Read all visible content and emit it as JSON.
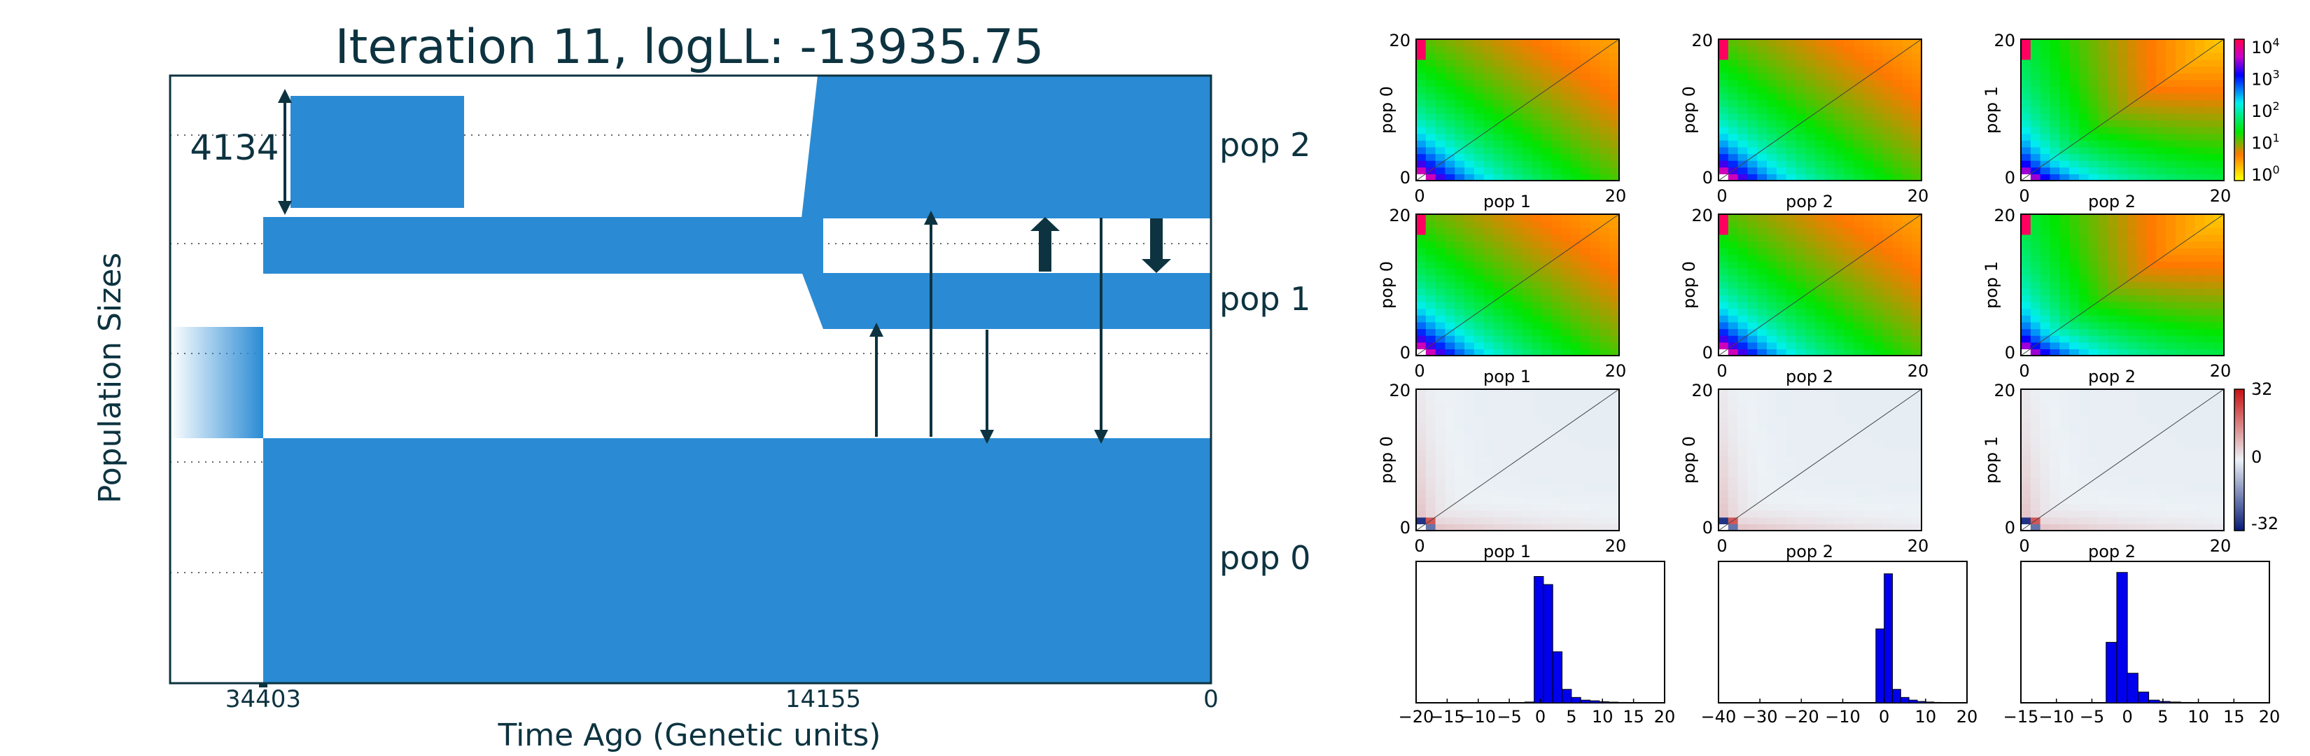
{
  "demography": {
    "title": "Iteration 11, logLL:  -13935.75",
    "xlabel": "Time Ago (Genetic units)",
    "ylabel": "Population Sizes",
    "x_ticks": [
      "34403",
      "14155",
      "0"
    ],
    "size_scale_label": "4134",
    "populations": [
      "pop 0",
      "pop 1",
      "pop 2"
    ],
    "color": "#2a8bd4",
    "dark_color": "#0d3340"
  },
  "chart_data": [
    {
      "type": "heatmap",
      "row": "SFS",
      "panels": [
        {
          "xlabel": "pop 1",
          "ylabel": "pop 0",
          "x_ticks": [
            0,
            20
          ],
          "y_ticks": [
            0,
            20
          ]
        },
        {
          "xlabel": "pop 2",
          "ylabel": "pop 0",
          "x_ticks": [
            0,
            20
          ],
          "y_ticks": [
            0,
            20
          ]
        },
        {
          "xlabel": "pop 2",
          "ylabel": "pop 1",
          "x_ticks": [
            0,
            20
          ],
          "y_ticks": [
            0,
            20
          ]
        }
      ],
      "colorbar": {
        "scale": "log",
        "ticks": [
          "10^4",
          "10^3",
          "10^2",
          "10^1",
          "10^0"
        ]
      }
    },
    {
      "type": "heatmap",
      "row": "model",
      "panels": [
        {
          "xlabel": "pop 1",
          "ylabel": "pop 0",
          "x_ticks": [
            0,
            20
          ],
          "y_ticks": [
            0,
            20
          ]
        },
        {
          "xlabel": "pop 2",
          "ylabel": "pop 0",
          "x_ticks": [
            0,
            20
          ],
          "y_ticks": [
            0,
            20
          ]
        },
        {
          "xlabel": "pop 2",
          "ylabel": "pop 1",
          "x_ticks": [
            0,
            20
          ],
          "y_ticks": [
            0,
            20
          ]
        }
      ]
    },
    {
      "type": "heatmap",
      "row": "residuals",
      "panels": [
        {
          "xlabel": "pop 1",
          "ylabel": "pop 0",
          "x_ticks": [
            0,
            20
          ],
          "y_ticks": [
            0,
            20
          ]
        },
        {
          "xlabel": "pop 2",
          "ylabel": "pop 0",
          "x_ticks": [
            0,
            20
          ],
          "y_ticks": [
            0,
            20
          ]
        },
        {
          "xlabel": "pop 2",
          "ylabel": "pop 1",
          "x_ticks": [
            0,
            20
          ],
          "y_ticks": [
            0,
            20
          ]
        }
      ],
      "colorbar": {
        "scale": "linear",
        "range": [
          -32,
          32
        ],
        "ticks": [
          "32",
          "0",
          "-32"
        ]
      }
    },
    {
      "type": "bar",
      "row": "residual histograms",
      "panels": [
        {
          "xlim": [
            -20,
            20
          ],
          "x_ticks": [
            "−20",
            "−15",
            "−10",
            "−5",
            "0",
            "5",
            "10",
            "15",
            "20"
          ],
          "bins": [
            -2.5,
            -1,
            0.5,
            2,
            3.5,
            5,
            6.5,
            8,
            9.5,
            11,
            12.5,
            14,
            15.5
          ],
          "values": [
            0.006,
            0.94,
            0.88,
            0.38,
            0.1,
            0.04,
            0.02,
            0.015,
            0.008,
            0.005,
            0.003,
            0.002
          ]
        },
        {
          "xlim": [
            -40,
            20
          ],
          "x_ticks": [
            "−40",
            "−30",
            "−20",
            "−10",
            "0",
            "10",
            "20"
          ],
          "bins": [
            -2,
            0,
            2,
            4,
            6,
            8,
            10,
            12,
            14
          ],
          "values": [
            0.55,
            0.96,
            0.1,
            0.04,
            0.02,
            0.01,
            0.006,
            0.003
          ]
        },
        {
          "xlim": [
            -15,
            20
          ],
          "x_ticks": [
            "−15",
            "−10",
            "−5",
            "0",
            "5",
            "10",
            "15",
            "20"
          ],
          "bins": [
            -3,
            -1.5,
            0,
            1.5,
            3,
            4.5,
            6,
            7.5,
            9,
            10.5
          ],
          "values": [
            0.45,
            0.97,
            0.22,
            0.08,
            0.02,
            0.01,
            0.006,
            0.003,
            0.002
          ]
        }
      ],
      "color": "#0000ee"
    }
  ]
}
